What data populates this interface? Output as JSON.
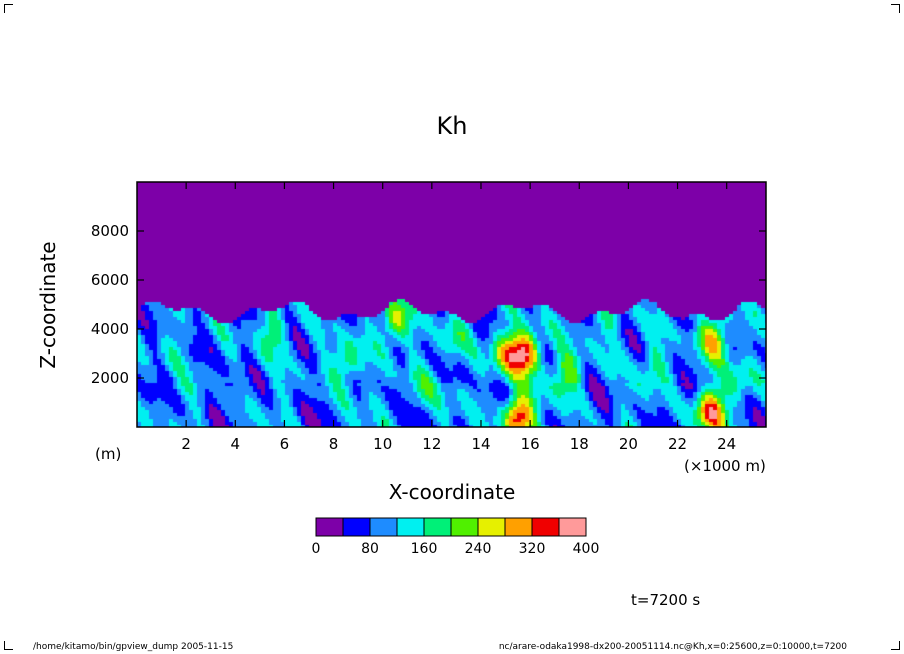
{
  "chart_data": {
    "type": "heatmap",
    "title": "Kh",
    "xlabel": "X-coordinate",
    "ylabel": "Z-coordinate",
    "x_unit": "(×1000 m)",
    "y_unit": "(m)",
    "xlim": [
      0,
      25.6
    ],
    "ylim": [
      0,
      10000
    ],
    "x_ticks": [
      2,
      4,
      6,
      8,
      10,
      12,
      14,
      16,
      18,
      20,
      22,
      24
    ],
    "y_ticks": [
      2000,
      4000,
      6000,
      8000
    ],
    "colorbar": {
      "levels": [
        0,
        40,
        80,
        120,
        160,
        200,
        240,
        280,
        320,
        360,
        400
      ],
      "labels": [
        0,
        80,
        160,
        240,
        320,
        400
      ],
      "colors": [
        "#7d00a8",
        "#0000ff",
        "#1e8cff",
        "#00f0f0",
        "#00f078",
        "#50f000",
        "#e6f000",
        "#ffa000",
        "#f00000",
        "#ff9a9a"
      ]
    },
    "plumes": [
      {
        "x": 1.5,
        "z": 3200,
        "v": 120
      },
      {
        "x": 3.0,
        "z": 2000,
        "v": 90
      },
      {
        "x": 5.5,
        "z": 3900,
        "v": 180
      },
      {
        "x": 8.5,
        "z": 2600,
        "v": 210
      },
      {
        "x": 10.5,
        "z": 4300,
        "v": 250
      },
      {
        "x": 11.5,
        "z": 1400,
        "v": 170
      },
      {
        "x": 12.8,
        "z": 3500,
        "v": 160
      },
      {
        "x": 15.0,
        "z": 3000,
        "v": 250
      },
      {
        "x": 15.8,
        "z": 3000,
        "v": 350
      },
      {
        "x": 15.5,
        "z": 400,
        "v": 380
      },
      {
        "x": 17.5,
        "z": 2200,
        "v": 220
      },
      {
        "x": 19.0,
        "z": 4200,
        "v": 150
      },
      {
        "x": 21.0,
        "z": 2500,
        "v": 170
      },
      {
        "x": 23.5,
        "z": 3600,
        "v": 270
      },
      {
        "x": 23.3,
        "z": 600,
        "v": 340
      },
      {
        "x": 24.5,
        "z": 2000,
        "v": 160
      }
    ]
  },
  "annotations": {
    "time": "t=7200 s",
    "footer_left": "/home/kitamo/bin/gpview_dump  2005-11-15",
    "footer_right": "nc/arare-odaka1998-dx200-20051114.nc@Kh,x=0:25600,z=0:10000,t=7200"
  }
}
